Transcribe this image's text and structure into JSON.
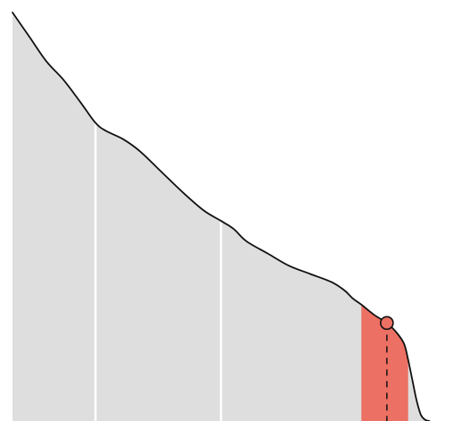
{
  "chart_data": {
    "type": "area",
    "title": "",
    "xlabel": "",
    "ylabel": "",
    "grid": false,
    "legend": "none",
    "xlim": [
      0,
      100
    ],
    "ylim": [
      0,
      100
    ],
    "curve": {
      "x": [
        0,
        4,
        8,
        12,
        16,
        19.5,
        22,
        26,
        30,
        35,
        40,
        45,
        49,
        52,
        55,
        60,
        65,
        70,
        75,
        78,
        80,
        82,
        85,
        88,
        90,
        92,
        93,
        94,
        95,
        96,
        97,
        98
      ],
      "y": [
        100,
        94,
        88,
        83.5,
        78,
        73,
        71,
        69,
        66,
        61,
        56,
        51.5,
        49,
        47,
        44,
        41,
        38,
        36,
        34,
        32,
        30,
        28.5,
        26,
        24,
        22,
        19,
        15,
        10,
        5,
        1.5,
        0.3,
        0
      ]
    },
    "dividers": [
      19.5,
      49
    ],
    "highlight_band": {
      "from": 82,
      "to": 93
    },
    "marker": {
      "x": 88,
      "y": 24
    },
    "colors": {
      "area": "#dedede",
      "highlight": "#ec7063",
      "divider": "#ffffff",
      "line": "#111111"
    }
  }
}
